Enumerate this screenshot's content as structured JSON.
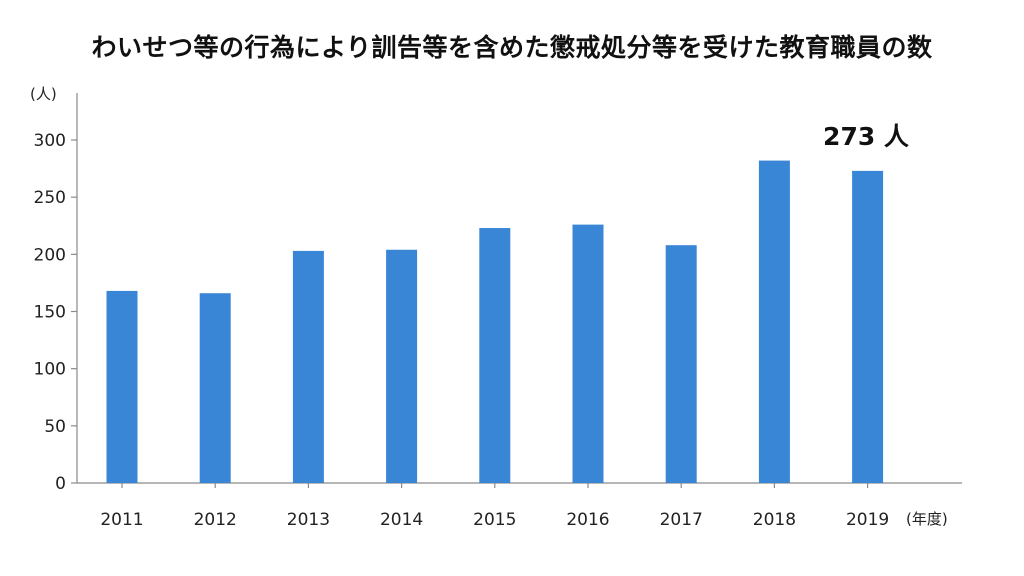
{
  "chart_data": {
    "type": "bar",
    "title": "わいせつ等の行為により訓告等を含めた懲戒処分等を受けた教育職員の数",
    "xlabel": "(年度)",
    "ylabel": "(人)",
    "categories": [
      "2011",
      "2012",
      "2013",
      "2014",
      "2015",
      "2016",
      "2017",
      "2018",
      "2019"
    ],
    "values": [
      168,
      166,
      203,
      204,
      223,
      226,
      208,
      282,
      273
    ],
    "ylim": [
      0,
      340
    ],
    "yticks": [
      "0",
      "50",
      "100",
      "150",
      "200",
      "250",
      "300"
    ],
    "annotation": "273 人",
    "bar_color": "#3a86d6",
    "highlight_color": "#cfe3fb",
    "grid": false,
    "legend": "none"
  }
}
